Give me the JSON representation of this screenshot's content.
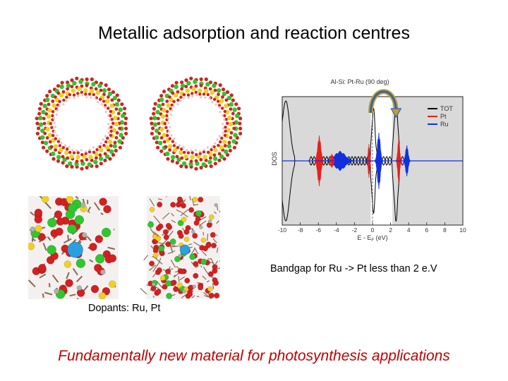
{
  "slide": {
    "title": "Metallic adsorption and reaction centres",
    "bandgap_caption": "Bandgap for Ru -> Pt less than 2 e.V",
    "dopants_caption": "Dopants: Ru, Pt",
    "conclusion": "Fundamentally new material for photosynthesis applications"
  },
  "dos_plot": {
    "title": "Al-Si: Pt-Ru (90 deg)",
    "ylabel": "DOS",
    "xlabel": "E - Eₑ (eV)",
    "xlabel_main": "E - E",
    "xlabel_sub": "F",
    "xlabel_unit": " (eV)",
    "xticks": [
      "-10",
      "-8",
      "-6",
      "-4",
      "-2",
      "0",
      "2",
      "4",
      "6",
      "8",
      "10"
    ],
    "legend": [
      {
        "label": "TOT",
        "color": "#000000"
      },
      {
        "label": "Pt",
        "color": "#e8201a"
      },
      {
        "label": "Ru",
        "color": "#1030e0"
      }
    ]
  },
  "colors": {
    "title_text": "#000000",
    "conclusion_text": "#c00000",
    "dos_shade": "#d9d9d9",
    "atom_si": "#f0d020",
    "atom_al": "#2ec72e",
    "atom_o": "#d42020",
    "atom_ru": "#2ba0e0"
  }
}
